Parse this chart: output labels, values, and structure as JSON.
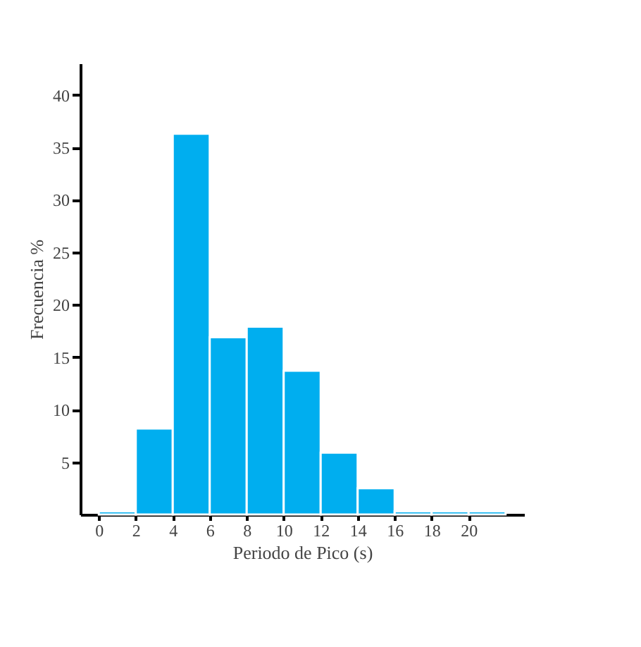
{
  "chart_data": {
    "type": "histogram",
    "xlabel": "Periodo de Pico (s)",
    "ylabel": "Frecuencia %",
    "bins": [
      0,
      2,
      4,
      6,
      8,
      10,
      12,
      14,
      16,
      18,
      20,
      22
    ],
    "values": [
      0.3,
      8.2,
      36.3,
      16.9,
      17.9,
      13.7,
      5.9,
      2.5,
      0.3,
      0.3,
      0.3
    ],
    "color": "#00aeef",
    "xlim": [
      -1,
      23
    ],
    "xticks": [
      0,
      2,
      4,
      6,
      8,
      10,
      12,
      14,
      16,
      18,
      20
    ],
    "ylim": [
      0,
      43
    ],
    "yticks": [
      5,
      10,
      15,
      20,
      25,
      30,
      35,
      40
    ],
    "grid": false
  }
}
